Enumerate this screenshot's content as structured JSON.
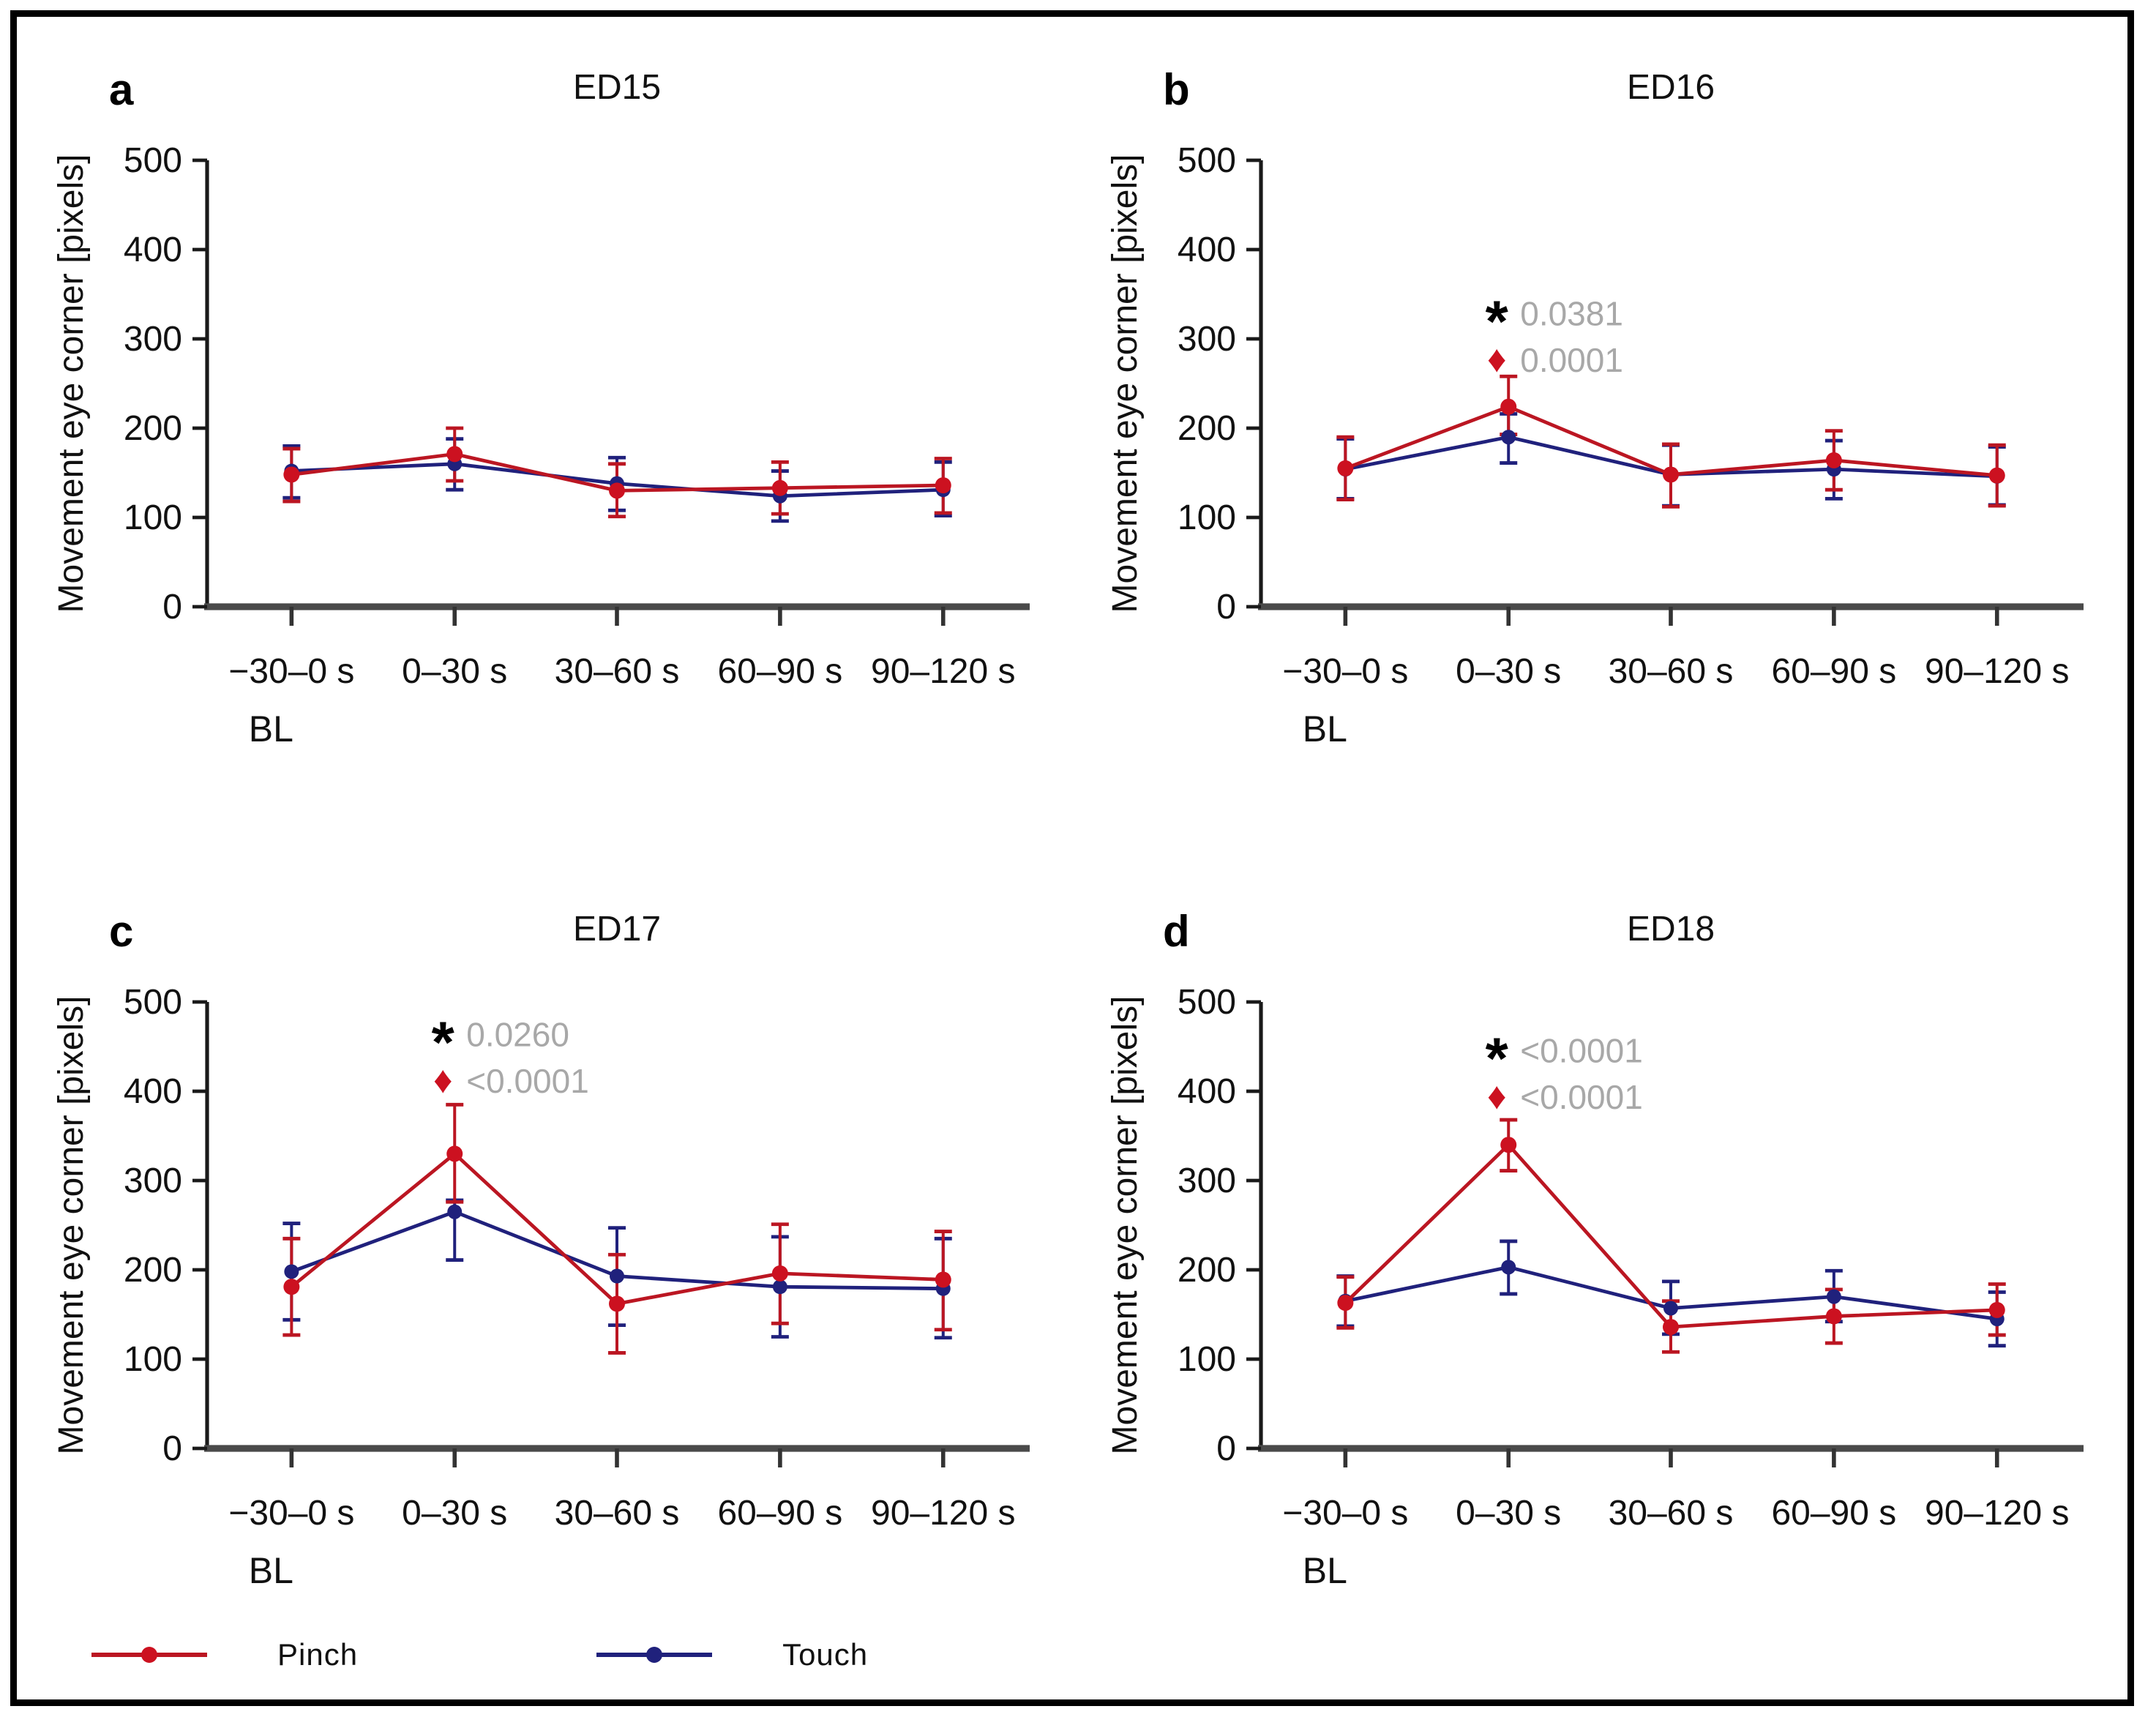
{
  "figure": {
    "ylabel": "Movement eye corner [pixels]",
    "x_categories": [
      "−30–0 s",
      "0–30 s",
      "30–60 s",
      "60–90 s",
      "90–120 s"
    ],
    "baseline_label": "BL",
    "ylim": [
      0,
      500
    ],
    "yticks": [
      0,
      100,
      200,
      300,
      400,
      500
    ],
    "grid": "off",
    "legend_position": "bottom-left"
  },
  "colors": {
    "pinch": "#bb1622",
    "pinch_marker": "#cc1120",
    "touch": "#20217c",
    "annotation_text": "#a8a8a8",
    "asterisk": "#000000",
    "axis_x": "#4a4a4a",
    "axis_y": "#1a1a1a",
    "frame": "#000000"
  },
  "legend": {
    "items": [
      {
        "label": "Pinch",
        "series": "Pinch"
      },
      {
        "label": "Touch",
        "series": "Touch"
      }
    ]
  },
  "chart_data": [
    {
      "type": "line",
      "panel_letter": "a",
      "title": "ED15",
      "categories": [
        "−30–0 s",
        "0–30 s",
        "30–60 s",
        "60–90 s",
        "90–120 s"
      ],
      "xlabel": "",
      "ylabel": "Movement eye corner [pixels]",
      "ylim": [
        0,
        500
      ],
      "series": [
        {
          "name": "Touch",
          "values": [
            152,
            160,
            138,
            124,
            131
          ],
          "err_lo": [
            122,
            131,
            108,
            96,
            102
          ],
          "err_hi": [
            180,
            188,
            167,
            152,
            162
          ]
        },
        {
          "name": "Pinch",
          "values": [
            148,
            171,
            130,
            133,
            136
          ],
          "err_lo": [
            118,
            141,
            101,
            104,
            105
          ],
          "err_hi": [
            177,
            200,
            160,
            162,
            166
          ]
        }
      ],
      "annotations": []
    },
    {
      "type": "line",
      "panel_letter": "b",
      "title": "ED16",
      "categories": [
        "−30–0 s",
        "0–30 s",
        "30–60 s",
        "60–90 s",
        "90–120 s"
      ],
      "xlabel": "",
      "ylabel": "Movement eye corner [pixels]",
      "ylim": [
        0,
        500
      ],
      "series": [
        {
          "name": "Touch",
          "values": [
            154,
            190,
            148,
            154,
            146
          ],
          "err_lo": [
            121,
            161,
            113,
            121,
            114
          ],
          "err_hi": [
            188,
            216,
            181,
            186,
            179
          ]
        },
        {
          "name": "Pinch",
          "values": [
            155,
            224,
            148,
            164,
            147
          ],
          "err_lo": [
            120,
            193,
            112,
            131,
            113
          ],
          "err_hi": [
            190,
            258,
            182,
            197,
            181
          ]
        }
      ],
      "annotations": [
        {
          "symbol": "asterisk",
          "p_value": "0.0381",
          "x_index": 1,
          "y": 330
        },
        {
          "symbol": "diamond",
          "p_value": "0.0001",
          "x_index": 1,
          "y": 278
        }
      ]
    },
    {
      "type": "line",
      "panel_letter": "c",
      "title": "ED17",
      "categories": [
        "−30–0 s",
        "0–30 s",
        "30–60 s",
        "60–90 s",
        "90–120 s"
      ],
      "xlabel": "",
      "ylabel": "Movement eye corner [pixels]",
      "ylim": [
        0,
        500
      ],
      "series": [
        {
          "name": "Touch",
          "values": [
            198,
            265,
            193,
            181,
            179
          ],
          "err_lo": [
            144,
            211,
            138,
            125,
            124
          ],
          "err_hi": [
            252,
            278,
            247,
            237,
            235
          ]
        },
        {
          "name": "Pinch",
          "values": [
            181,
            330,
            162,
            196,
            189
          ],
          "err_lo": [
            127,
            276,
            107,
            140,
            133
          ],
          "err_hi": [
            235,
            385,
            217,
            251,
            243
          ]
        }
      ],
      "annotations": [
        {
          "symbol": "asterisk",
          "p_value": "0.0260",
          "x_index": 1,
          "y": 465
        },
        {
          "symbol": "diamond",
          "p_value": "<0.0001",
          "x_index": 1,
          "y": 413
        }
      ]
    },
    {
      "type": "line",
      "panel_letter": "d",
      "title": "ED18",
      "categories": [
        "−30–0 s",
        "0–30 s",
        "30–60 s",
        "60–90 s",
        "90–120 s"
      ],
      "xlabel": "",
      "ylabel": "Movement eye corner [pixels]",
      "ylim": [
        0,
        500
      ],
      "series": [
        {
          "name": "Touch",
          "values": [
            165,
            203,
            157,
            170,
            145
          ],
          "err_lo": [
            137,
            173,
            128,
            142,
            115
          ],
          "err_hi": [
            193,
            232,
            187,
            199,
            175
          ]
        },
        {
          "name": "Pinch",
          "values": [
            163,
            340,
            136,
            148,
            155
          ],
          "err_lo": [
            135,
            311,
            108,
            118,
            127
          ],
          "err_hi": [
            192,
            368,
            165,
            178,
            184
          ]
        }
      ],
      "annotations": [
        {
          "symbol": "asterisk",
          "p_value": "<0.0001",
          "x_index": 1,
          "y": 447
        },
        {
          "symbol": "diamond",
          "p_value": "<0.0001",
          "x_index": 1,
          "y": 395
        }
      ]
    }
  ]
}
